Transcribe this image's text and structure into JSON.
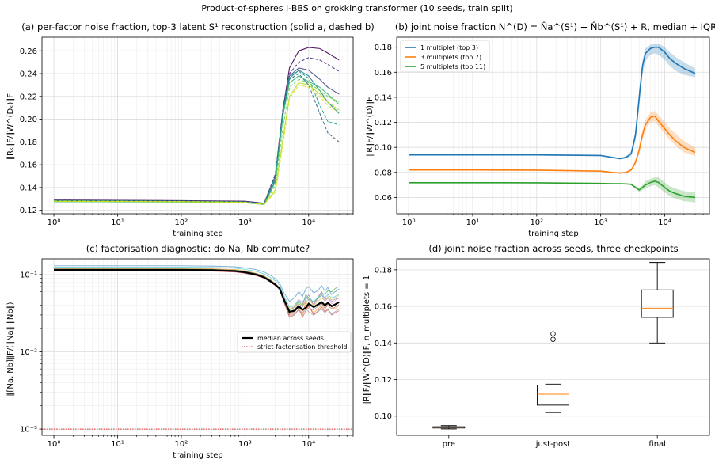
{
  "figure": {
    "suptitle": "Product-of-spheres I-BBS on grokking transformer (10 seeds, train split)"
  },
  "colors": {
    "blue": "#1f77b4",
    "orange": "#ff7f0e",
    "green": "#2ca02c",
    "median": "#000000",
    "threshold": "#d62728",
    "box_median": "#ff7f0e"
  },
  "chart_data": [
    {
      "id": "a",
      "type": "line",
      "title": "(a) per-factor noise fraction, top-3 latent S¹ reconstruction (solid a, dashed b)",
      "xlabel": "training step",
      "ylabel": "‖Rₖ‖F/‖W^(Dₖ)‖F",
      "xscale": "log",
      "xlim": [
        0.65,
        50000
      ],
      "ylim": [
        0.117,
        0.272
      ],
      "xticks": [
        1,
        10,
        100,
        1000,
        10000
      ],
      "xtick_labels": [
        "10⁰",
        "10¹",
        "10²",
        "10³",
        "10⁴"
      ],
      "yticks": [
        0.12,
        0.14,
        0.16,
        0.18,
        0.2,
        0.22,
        0.24,
        0.26
      ],
      "ytick_labels": [
        "0.12",
        "0.14",
        "0.16",
        "0.18",
        "0.20",
        "0.22",
        "0.24",
        "0.26"
      ],
      "grid": true,
      "x": [
        1,
        10,
        100,
        1000,
        2000,
        3000,
        4000,
        5000,
        7000,
        10000,
        15000,
        20000,
        30000
      ],
      "series": [
        {
          "color": "#440154",
          "dash": false,
          "values": [
            0.129,
            0.1288,
            0.1285,
            0.128,
            0.1262,
            0.15,
            0.21,
            0.245,
            0.26,
            0.263,
            0.262,
            0.258,
            0.252
          ]
        },
        {
          "color": "#482878",
          "dash": true,
          "values": [
            0.129,
            0.1287,
            0.1284,
            0.1278,
            0.126,
            0.152,
            0.212,
            0.24,
            0.25,
            0.254,
            0.252,
            0.248,
            0.242
          ]
        },
        {
          "color": "#3e4a89",
          "dash": false,
          "values": [
            0.1285,
            0.1284,
            0.1282,
            0.1276,
            0.1258,
            0.15,
            0.21,
            0.238,
            0.245,
            0.243,
            0.235,
            0.228,
            0.222
          ]
        },
        {
          "color": "#31688e",
          "dash": true,
          "values": [
            0.128,
            0.1279,
            0.1277,
            0.1272,
            0.1255,
            0.148,
            0.205,
            0.235,
            0.24,
            0.23,
            0.205,
            0.188,
            0.18
          ]
        },
        {
          "color": "#26828e",
          "dash": false,
          "values": [
            0.128,
            0.1279,
            0.1277,
            0.1271,
            0.1254,
            0.146,
            0.206,
            0.236,
            0.243,
            0.238,
            0.225,
            0.215,
            0.205
          ]
        },
        {
          "color": "#1f9e89",
          "dash": true,
          "values": [
            0.1285,
            0.1283,
            0.128,
            0.1274,
            0.1256,
            0.15,
            0.21,
            0.238,
            0.242,
            0.236,
            0.212,
            0.198,
            0.195
          ]
        },
        {
          "color": "#35b779",
          "dash": false,
          "values": [
            0.1275,
            0.1274,
            0.1272,
            0.1267,
            0.125,
            0.145,
            0.205,
            0.232,
            0.238,
            0.233,
            0.228,
            0.222,
            0.213
          ]
        },
        {
          "color": "#6ece58",
          "dash": true,
          "values": [
            0.128,
            0.1278,
            0.1276,
            0.127,
            0.1252,
            0.142,
            0.195,
            0.228,
            0.235,
            0.232,
            0.225,
            0.22,
            0.215
          ]
        },
        {
          "color": "#b5de2b",
          "dash": false,
          "values": [
            0.1278,
            0.1277,
            0.1275,
            0.1269,
            0.1251,
            0.138,
            0.185,
            0.22,
            0.232,
            0.23,
            0.222,
            0.215,
            0.208
          ]
        },
        {
          "color": "#d8e219",
          "dash": true,
          "values": [
            0.128,
            0.1279,
            0.1277,
            0.1271,
            0.1253,
            0.136,
            0.18,
            0.218,
            0.23,
            0.228,
            0.22,
            0.212,
            0.206
          ]
        }
      ]
    },
    {
      "id": "b",
      "type": "line",
      "title": "(b) joint noise fraction N^(D) = N̂a^(S¹) + N̂b^(S¹) + R, median + IQR",
      "xlabel": "training step",
      "ylabel": "‖R‖F/‖W^(D)‖F",
      "xscale": "log",
      "xlim": [
        0.65,
        50000
      ],
      "ylim": [
        0.047,
        0.188
      ],
      "xticks": [
        1,
        10,
        100,
        1000,
        10000
      ],
      "xtick_labels": [
        "10⁰",
        "10¹",
        "10²",
        "10³",
        "10⁴"
      ],
      "yticks": [
        0.06,
        0.08,
        0.1,
        0.12,
        0.14,
        0.16,
        0.18
      ],
      "ytick_labels": [
        "0.06",
        "0.08",
        "0.10",
        "0.12",
        "0.14",
        "0.16",
        "0.18"
      ],
      "grid": true,
      "legend_position": "upper-left",
      "x": [
        1,
        10,
        100,
        1000,
        1500,
        2000,
        2500,
        3000,
        3500,
        4000,
        4500,
        5000,
        6000,
        7000,
        8000,
        10000,
        12000,
        15000,
        20000,
        30000
      ],
      "series": [
        {
          "name": "1 multiplet (top 3)",
          "color": "#1f77b4",
          "values": [
            0.094,
            0.094,
            0.094,
            0.0935,
            0.092,
            0.091,
            0.092,
            0.095,
            0.11,
            0.14,
            0.165,
            0.175,
            0.179,
            0.18,
            0.18,
            0.176,
            0.171,
            0.167,
            0.163,
            0.159
          ],
          "low": [
            0.0935,
            0.0935,
            0.0935,
            0.093,
            0.0915,
            0.0905,
            0.091,
            0.093,
            0.105,
            0.132,
            0.158,
            0.169,
            0.174,
            0.175,
            0.174,
            0.17,
            0.165,
            0.161,
            0.158,
            0.156
          ],
          "high": [
            0.0945,
            0.0945,
            0.0945,
            0.094,
            0.0925,
            0.0915,
            0.093,
            0.097,
            0.114,
            0.146,
            0.17,
            0.179,
            0.182,
            0.183,
            0.183,
            0.18,
            0.176,
            0.172,
            0.168,
            0.163
          ]
        },
        {
          "name": "3 multiplets (top 7)",
          "color": "#ff7f0e",
          "values": [
            0.082,
            0.082,
            0.0818,
            0.081,
            0.08,
            0.0795,
            0.08,
            0.082,
            0.088,
            0.098,
            0.11,
            0.118,
            0.124,
            0.125,
            0.121,
            0.115,
            0.11,
            0.105,
            0.1,
            0.096
          ],
          "low": [
            0.0815,
            0.0815,
            0.0813,
            0.0805,
            0.0795,
            0.079,
            0.0795,
            0.081,
            0.086,
            0.095,
            0.106,
            0.114,
            0.12,
            0.121,
            0.117,
            0.111,
            0.106,
            0.101,
            0.096,
            0.093
          ],
          "high": [
            0.0825,
            0.0825,
            0.0823,
            0.0815,
            0.0805,
            0.08,
            0.0805,
            0.083,
            0.09,
            0.101,
            0.114,
            0.122,
            0.128,
            0.129,
            0.126,
            0.12,
            0.115,
            0.111,
            0.105,
            0.1
          ]
        },
        {
          "name": "5 multiplets (top 11)",
          "color": "#2ca02c",
          "values": [
            0.0718,
            0.0718,
            0.0717,
            0.0712,
            0.071,
            0.071,
            0.0708,
            0.0705,
            0.068,
            0.066,
            0.068,
            0.07,
            0.072,
            0.073,
            0.072,
            0.068,
            0.065,
            0.063,
            0.061,
            0.06
          ],
          "low": [
            0.0714,
            0.0714,
            0.0713,
            0.0708,
            0.0706,
            0.0706,
            0.0704,
            0.07,
            0.067,
            0.0645,
            0.066,
            0.067,
            0.069,
            0.07,
            0.068,
            0.064,
            0.061,
            0.059,
            0.057,
            0.056
          ],
          "high": [
            0.0722,
            0.0722,
            0.0721,
            0.0716,
            0.0714,
            0.0714,
            0.0712,
            0.071,
            0.069,
            0.0675,
            0.07,
            0.073,
            0.075,
            0.076,
            0.076,
            0.072,
            0.069,
            0.067,
            0.065,
            0.064
          ]
        }
      ]
    },
    {
      "id": "c",
      "type": "line",
      "title": "(c) factorisation diagnostic: do Na, Nb commute?",
      "xlabel": "training step",
      "ylabel": "‖[Na, Nb]‖F/(‖Na‖ ‖Nb‖)",
      "xscale": "log",
      "yscale": "log",
      "xlim": [
        0.65,
        50000
      ],
      "ylim": [
        0.00083,
        0.16
      ],
      "xticks": [
        1,
        10,
        100,
        1000,
        10000
      ],
      "xtick_labels": [
        "10⁰",
        "10¹",
        "10²",
        "10³",
        "10⁴"
      ],
      "yticks": [
        0.001,
        0.01,
        0.1
      ],
      "ytick_labels": [
        "10⁻³",
        "10⁻²",
        "10⁻¹"
      ],
      "grid": true,
      "legend_position": "center-right",
      "legend": [
        {
          "name": "median across seeds",
          "color": "#000000"
        },
        {
          "name": "strict-factorisation threshold",
          "color": "#d62728",
          "dotted": true
        }
      ],
      "threshold": 0.001,
      "x": [
        1,
        10,
        100,
        300,
        700,
        1000,
        1500,
        2000,
        2500,
        3000,
        3500,
        4000,
        5000,
        6000,
        7000,
        8000,
        9000,
        10000,
        12000,
        14000,
        16000,
        18000,
        20000,
        23000,
        26000,
        30000
      ],
      "median": [
        0.115,
        0.115,
        0.115,
        0.114,
        0.111,
        0.107,
        0.1,
        0.092,
        0.082,
        0.074,
        0.066,
        0.05,
        0.033,
        0.034,
        0.039,
        0.035,
        0.037,
        0.042,
        0.038,
        0.041,
        0.044,
        0.04,
        0.043,
        0.039,
        0.041,
        0.044
      ],
      "seeds": [
        {
          "color": "#1f77b4",
          "values": [
            0.13,
            0.13,
            0.13,
            0.129,
            0.126,
            0.122,
            0.116,
            0.108,
            0.098,
            0.088,
            0.078,
            0.06,
            0.045,
            0.05,
            0.06,
            0.052,
            0.065,
            0.07,
            0.058,
            0.062,
            0.072,
            0.061,
            0.068,
            0.055,
            0.06,
            0.065
          ]
        },
        {
          "color": "#ff7f0e",
          "values": [
            0.12,
            0.12,
            0.12,
            0.119,
            0.116,
            0.112,
            0.104,
            0.096,
            0.086,
            0.077,
            0.068,
            0.048,
            0.03,
            0.032,
            0.04,
            0.03,
            0.045,
            0.038,
            0.032,
            0.036,
            0.04,
            0.035,
            0.042,
            0.038,
            0.036,
            0.04
          ]
        },
        {
          "color": "#2ca02c",
          "values": [
            0.118,
            0.118,
            0.118,
            0.117,
            0.114,
            0.11,
            0.103,
            0.095,
            0.085,
            0.076,
            0.067,
            0.05,
            0.034,
            0.038,
            0.045,
            0.04,
            0.055,
            0.05,
            0.044,
            0.05,
            0.058,
            0.055,
            0.062,
            0.06,
            0.066,
            0.07
          ]
        },
        {
          "color": "#d62728",
          "values": [
            0.112,
            0.112,
            0.112,
            0.111,
            0.108,
            0.104,
            0.097,
            0.09,
            0.08,
            0.072,
            0.064,
            0.046,
            0.028,
            0.03,
            0.036,
            0.028,
            0.034,
            0.04,
            0.03,
            0.034,
            0.038,
            0.033,
            0.036,
            0.03,
            0.032,
            0.034
          ]
        },
        {
          "color": "#9467bd",
          "values": [
            0.116,
            0.116,
            0.116,
            0.115,
            0.112,
            0.108,
            0.101,
            0.093,
            0.083,
            0.075,
            0.066,
            0.049,
            0.032,
            0.036,
            0.042,
            0.038,
            0.048,
            0.055,
            0.04,
            0.052,
            0.06,
            0.048,
            0.05,
            0.045,
            0.048,
            0.05
          ]
        },
        {
          "color": "#8c564b",
          "values": [
            0.114,
            0.114,
            0.114,
            0.113,
            0.11,
            0.106,
            0.099,
            0.091,
            0.081,
            0.073,
            0.065,
            0.047,
            0.031,
            0.033,
            0.038,
            0.034,
            0.04,
            0.036,
            0.035,
            0.039,
            0.042,
            0.037,
            0.04,
            0.036,
            0.038,
            0.041
          ]
        },
        {
          "color": "#e377c2",
          "values": [
            0.113,
            0.113,
            0.113,
            0.112,
            0.109,
            0.105,
            0.098,
            0.09,
            0.081,
            0.073,
            0.065,
            0.05,
            0.035,
            0.04,
            0.048,
            0.042,
            0.052,
            0.046,
            0.042,
            0.048,
            0.055,
            0.045,
            0.05,
            0.042,
            0.046,
            0.05
          ]
        },
        {
          "color": "#7f7f7f",
          "values": [
            0.117,
            0.117,
            0.117,
            0.116,
            0.113,
            0.109,
            0.102,
            0.094,
            0.084,
            0.075,
            0.067,
            0.048,
            0.029,
            0.031,
            0.035,
            0.031,
            0.036,
            0.033,
            0.03,
            0.033,
            0.036,
            0.032,
            0.035,
            0.031,
            0.033,
            0.036
          ]
        },
        {
          "color": "#bcbd22",
          "values": [
            0.115,
            0.115,
            0.115,
            0.114,
            0.111,
            0.107,
            0.1,
            0.092,
            0.082,
            0.074,
            0.066,
            0.05,
            0.036,
            0.038,
            0.043,
            0.039,
            0.044,
            0.048,
            0.04,
            0.045,
            0.05,
            0.046,
            0.052,
            0.047,
            0.05,
            0.054
          ]
        },
        {
          "color": "#17becf",
          "values": [
            0.125,
            0.125,
            0.125,
            0.124,
            0.121,
            0.117,
            0.11,
            0.102,
            0.092,
            0.083,
            0.073,
            0.055,
            0.038,
            0.04,
            0.046,
            0.044,
            0.05,
            0.048,
            0.045,
            0.05,
            0.054,
            0.05,
            0.055,
            0.05,
            0.052,
            0.056
          ]
        }
      ]
    },
    {
      "id": "d",
      "type": "box",
      "title": "(d) joint noise fraction across seeds, three checkpoints",
      "ylabel": "‖R‖F/‖W^(D)‖F, n_multiplets = 1",
      "ylim": [
        0.0895,
        0.186
      ],
      "yticks": [
        0.1,
        0.12,
        0.14,
        0.16,
        0.18
      ],
      "ytick_labels": [
        "0.10",
        "0.12",
        "0.14",
        "0.16",
        "0.18"
      ],
      "grid": true,
      "categories": [
        "pre",
        "just-post",
        "final"
      ],
      "boxes": [
        {
          "whislo": 0.093,
          "q1": 0.0935,
          "med": 0.094,
          "q3": 0.0942,
          "whishi": 0.0948,
          "fliers": []
        },
        {
          "whislo": 0.102,
          "q1": 0.106,
          "med": 0.112,
          "q3": 0.117,
          "whishi": 0.1175,
          "fliers": [
            0.142,
            0.145
          ]
        },
        {
          "whislo": 0.14,
          "q1": 0.154,
          "med": 0.159,
          "q3": 0.169,
          "whishi": 0.184,
          "fliers": []
        }
      ]
    }
  ]
}
